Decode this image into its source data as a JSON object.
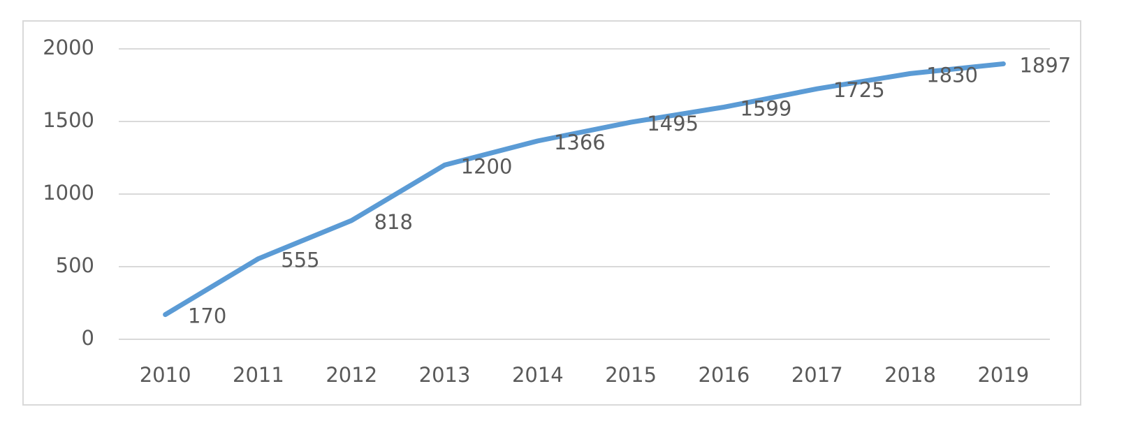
{
  "chart_data": {
    "type": "line",
    "categories": [
      "2010",
      "2011",
      "2012",
      "2013",
      "2014",
      "2015",
      "2016",
      "2017",
      "2018",
      "2019"
    ],
    "series": [
      {
        "name": "Series 1",
        "color": "#5b9bd5",
        "values": [
          170,
          555,
          818,
          1200,
          1366,
          1495,
          1599,
          1725,
          1830,
          1897
        ]
      }
    ],
    "ylim": [
      0,
      2000
    ],
    "yticks": [
      0,
      500,
      1000,
      1500,
      2000
    ],
    "grid": true,
    "legend": false,
    "data_labels": true
  }
}
